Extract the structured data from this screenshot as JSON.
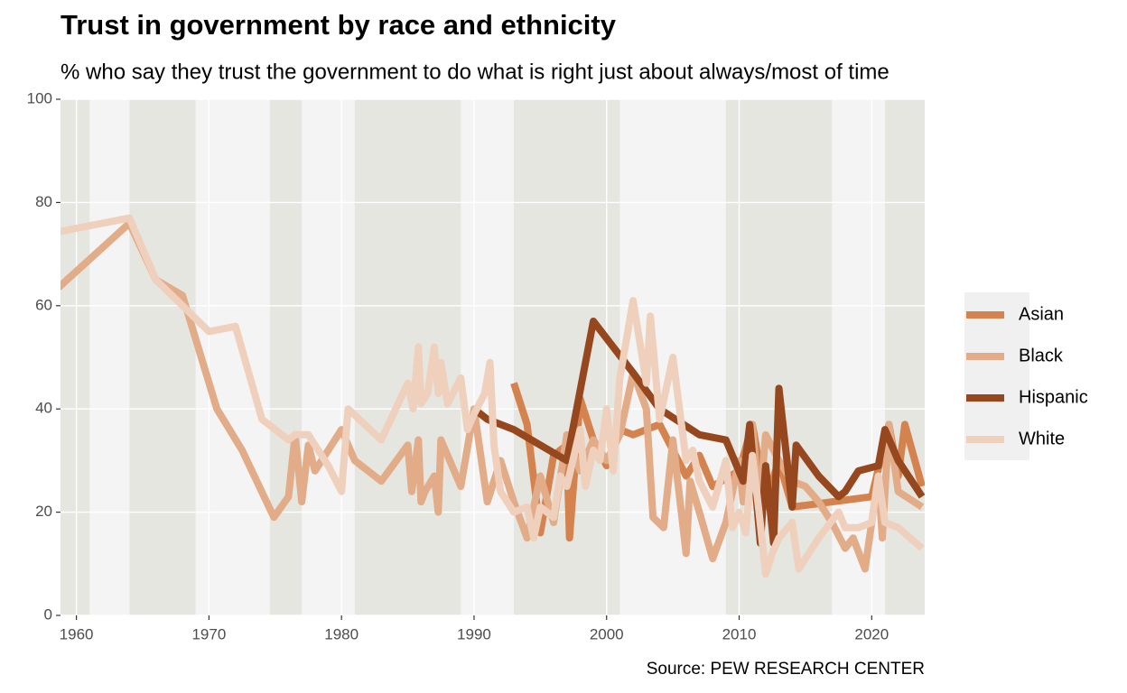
{
  "chart_data": {
    "type": "line",
    "title": "Trust in government by race and ethnicity",
    "subtitle": "% who say they trust the government to do what is right just about always/most of time",
    "source": "Source: PEW RESEARCH CENTER",
    "xlim": [
      1958.8,
      2024
    ],
    "xticks": [
      1960,
      1970,
      1980,
      1990,
      2000,
      2010,
      2020
    ],
    "ylim": [
      0,
      100
    ],
    "yticks": [
      0,
      20,
      40,
      60,
      80,
      100
    ],
    "grid": true,
    "legend": "right",
    "shaded_periods": [
      [
        1958.8,
        1961
      ],
      [
        1964,
        1969
      ],
      [
        1974.6,
        1977
      ],
      [
        1981,
        1989
      ],
      [
        1993,
        2001
      ],
      [
        2009,
        2017
      ],
      [
        2021,
        2024
      ]
    ],
    "shade_color": "#e5e6e0",
    "series": [
      {
        "name": "Asian",
        "color": "#d4834f",
        "x": [
          1993,
          1994,
          1995,
          1996,
          1997,
          1997.2,
          1998,
          1999,
          2000,
          2001,
          2002,
          2004,
          2006,
          2007,
          2008,
          2010,
          2011,
          2012,
          2013,
          2014,
          2020,
          2021.3,
          2022,
          2022.5,
          2023.8
        ],
        "values": [
          45,
          37,
          16,
          31,
          33,
          15,
          42,
          34,
          29,
          36,
          35,
          37,
          27,
          31,
          25,
          28,
          37,
          22,
          30,
          21,
          23,
          37,
          27,
          37,
          25
        ]
      },
      {
        "name": "Black",
        "color": "#e2ac88",
        "x": [
          1958,
          1964,
          1966,
          1968,
          1970.6,
          1972.5,
          1974.9,
          1976,
          1976.5,
          1977,
          1977.5,
          1978,
          1980,
          1981,
          1983,
          1985,
          1985.3,
          1985.8,
          1986,
          1986.3,
          1987,
          1987.3,
          1987.5,
          1988,
          1989,
          1990,
          1991,
          1992,
          1993,
          1994,
          1995,
          1996,
          1997,
          1998,
          1999,
          2000,
          2001,
          2002,
          2003,
          2003.5,
          2004.3,
          2005,
          2006,
          2006.3,
          2007,
          2008,
          2009,
          2010,
          2010.3,
          2011,
          2011.5,
          2012,
          2013,
          2014,
          2015,
          2016,
          2017,
          2018,
          2018.6,
          2019.5,
          2020.5,
          2020.8,
          2021.3,
          2022,
          2023.8
        ],
        "values": [
          62,
          76,
          65,
          62,
          40,
          32,
          19,
          23,
          35,
          22,
          33,
          28,
          36,
          30,
          26,
          33,
          24,
          34,
          22,
          24,
          27,
          20,
          34,
          31,
          25,
          40,
          22,
          30,
          22,
          15,
          27,
          18,
          35,
          28,
          34,
          30,
          35,
          47,
          40,
          19,
          17,
          34,
          12,
          26,
          20,
          11,
          18,
          30,
          22,
          37,
          20,
          35,
          30,
          26,
          25,
          22,
          18,
          13,
          15,
          9,
          27,
          15,
          37,
          24,
          21
        ]
      },
      {
        "name": "Hispanic",
        "color": "#96471e",
        "x": [
          1990,
          1991,
          1993,
          1997,
          1999,
          2002,
          2004,
          2007,
          2009,
          2010.3,
          2010.8,
          2011.6,
          2012,
          2012.6,
          2013,
          2014,
          2014.3,
          2016,
          2017.5,
          2018,
          2019,
          2020.5,
          2021,
          2022,
          2023.8
        ],
        "values": [
          40,
          38,
          36,
          30,
          57,
          47,
          40,
          35,
          34,
          26,
          37,
          14,
          29,
          14,
          44,
          21,
          33,
          27,
          23,
          24,
          28,
          29,
          36,
          30,
          23
        ]
      },
      {
        "name": "White",
        "color": "#efd0bd",
        "x": [
          1958,
          1964,
          1966,
          1968,
          1970,
          1972,
          1974,
          1976,
          1976.5,
          1977.5,
          1978,
          1979,
          1980,
          1980.5,
          1983,
          1985,
          1985.4,
          1985.8,
          1986,
          1986.5,
          1987,
          1987.3,
          1987.5,
          1988,
          1989,
          1989.5,
          1990,
          1990.8,
          1991.2,
          1991.5,
          1992,
          1993,
          1994,
          1994.5,
          1995,
          1996,
          1996.5,
          1997,
          1998,
          1998.4,
          1999,
          1999.5,
          2000,
          2000.5,
          2001,
          2002,
          2003,
          2003.3,
          2004,
          2005,
          2006,
          2006.5,
          2007,
          2008,
          2009,
          2009.5,
          2010,
          2010.5,
          2011,
          2011.5,
          2012,
          2012.5,
          2013,
          2014,
          2014.5,
          2016,
          2017.5,
          2018,
          2019,
          2020,
          2020.5,
          2021,
          2022,
          2023.8
        ],
        "values": [
          74,
          77,
          65,
          60,
          55,
          56,
          38,
          34,
          35,
          35,
          33,
          29,
          24,
          40,
          34,
          45,
          40,
          52,
          41,
          43,
          52,
          43,
          49,
          41,
          46,
          36,
          39,
          43,
          49,
          33,
          24,
          20,
          21,
          15,
          21,
          19,
          27,
          25,
          36,
          25,
          32,
          30,
          40,
          28,
          46,
          61,
          45,
          58,
          38,
          50,
          30,
          32,
          26,
          21,
          30,
          17,
          20,
          16,
          31,
          20,
          8,
          12,
          15,
          18,
          9,
          15,
          20,
          17,
          17,
          18,
          27,
          18,
          17,
          13
        ]
      }
    ]
  }
}
